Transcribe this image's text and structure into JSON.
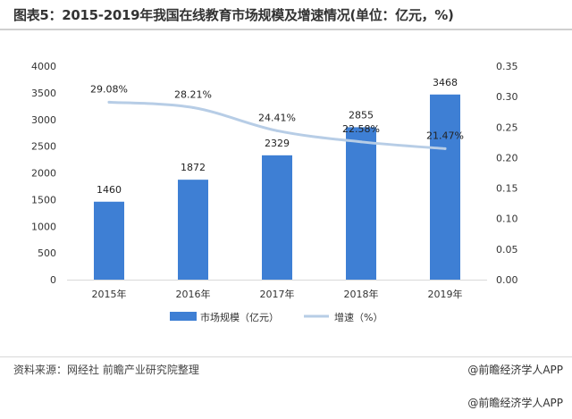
{
  "header": {
    "title": "图表5：2015-2019年我国在线教育市场规模及增速情况(单位：亿元，%)"
  },
  "chart_data": {
    "type": "bar",
    "categories": [
      "2015年",
      "2016年",
      "2017年",
      "2018年",
      "2019年"
    ],
    "series": [
      {
        "name": "市场规模（亿元）",
        "kind": "bar",
        "axis": "left",
        "color": "#3e7fd4",
        "values": [
          1460,
          1872,
          2329,
          2855,
          3468
        ],
        "labels": [
          "1460",
          "1872",
          "2329",
          "2855",
          "3468"
        ]
      },
      {
        "name": "增速（%）",
        "kind": "line",
        "axis": "right",
        "color": "#b7cde6",
        "values": [
          0.2908,
          0.2821,
          0.2441,
          0.2258,
          0.2147
        ],
        "labels": [
          "29.08%",
          "28.21%",
          "24.41%",
          "22.58%",
          "21.47%"
        ]
      }
    ],
    "y_left": {
      "ylim": [
        0,
        4000
      ],
      "ticks": [
        "0",
        "500",
        "1000",
        "1500",
        "2000",
        "2500",
        "3000",
        "3500",
        "4000"
      ]
    },
    "y_right": {
      "ylim": [
        0,
        0.35
      ],
      "ticks": [
        "0.00",
        "0.05",
        "0.10",
        "0.15",
        "0.20",
        "0.25",
        "0.30",
        "0.35"
      ]
    },
    "xlabel": "",
    "ylabel": "",
    "legend": "bottom",
    "grid": false
  },
  "footer": {
    "source": "资料来源：网经社 前瞻产业研究院整理",
    "brand": "@前瞻经济学人APP",
    "brand_bottom": "@前瞻经济学人APP",
    "brand_icon": "camera-icon"
  }
}
